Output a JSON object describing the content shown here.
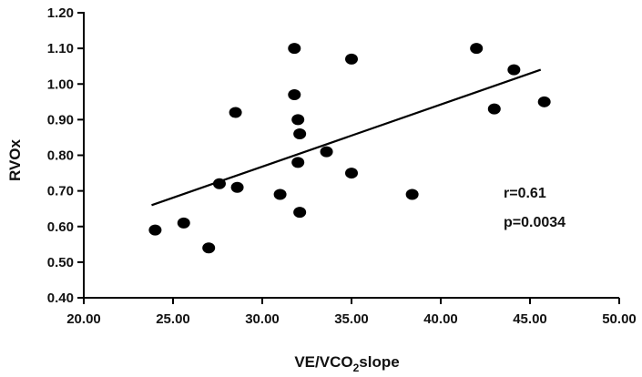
{
  "chart_data": {
    "type": "scatter",
    "title": "",
    "xlabel_main": "VE/VCO",
    "xlabel_sub": "2",
    "xlabel_tail": "slope",
    "ylabel": "RVOx",
    "xlim": [
      20,
      50
    ],
    "ylim": [
      0.4,
      1.2
    ],
    "x_ticks": [
      "20.00",
      "25.00",
      "30.00",
      "35.00",
      "40.00",
      "45.00",
      "50.00"
    ],
    "y_ticks": [
      "0.40",
      "0.50",
      "0.60",
      "0.70",
      "0.80",
      "0.90",
      "1.00",
      "1.10",
      "1.20"
    ],
    "grid": false,
    "marker_color": "#000000",
    "points": [
      {
        "x": 24.0,
        "y": 0.59
      },
      {
        "x": 25.6,
        "y": 0.61
      },
      {
        "x": 27.0,
        "y": 0.54
      },
      {
        "x": 27.6,
        "y": 0.72
      },
      {
        "x": 28.5,
        "y": 0.92
      },
      {
        "x": 28.6,
        "y": 0.71
      },
      {
        "x": 31.0,
        "y": 0.69
      },
      {
        "x": 31.8,
        "y": 1.1
      },
      {
        "x": 31.8,
        "y": 0.97
      },
      {
        "x": 32.0,
        "y": 0.9
      },
      {
        "x": 32.1,
        "y": 0.86
      },
      {
        "x": 32.0,
        "y": 0.78
      },
      {
        "x": 32.1,
        "y": 0.64
      },
      {
        "x": 33.6,
        "y": 0.81
      },
      {
        "x": 35.0,
        "y": 1.07
      },
      {
        "x": 35.0,
        "y": 0.75
      },
      {
        "x": 38.4,
        "y": 0.69
      },
      {
        "x": 42.0,
        "y": 1.1
      },
      {
        "x": 43.0,
        "y": 0.93
      },
      {
        "x": 44.1,
        "y": 1.04
      },
      {
        "x": 45.8,
        "y": 0.95
      }
    ],
    "regression_line": {
      "x1": 23.8,
      "y1": 0.66,
      "x2": 45.6,
      "y2": 1.04
    },
    "annotations": [
      "r=0.61",
      "p=0.0034"
    ]
  }
}
